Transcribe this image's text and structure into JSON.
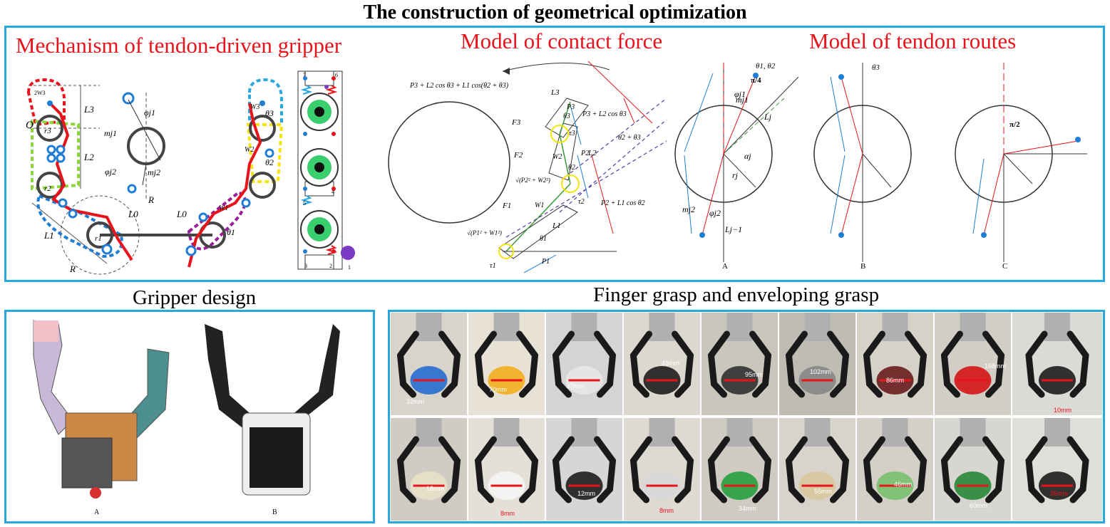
{
  "title": "The construction of geometrical optimization",
  "sections": {
    "mechanism": "Mechanism of tendon-driven gripper",
    "contact_force": "Model of contact force",
    "tendon_routes": "Model of tendon routes",
    "gripper_design": "Gripper design",
    "grasp": "Finger grasp and enveloping grasp"
  },
  "mechanism_labels": {
    "O": "O",
    "r3": "r3",
    "r2": "r2",
    "r1": "r1",
    "L3": "L3",
    "L2": "L2",
    "L1": "L1",
    "L0a": "L0",
    "L0b": "L0",
    "R1": "R",
    "R2": "R",
    "w3a": "2W3",
    "w3b": "W3",
    "w2": "W2",
    "w1": "W1",
    "theta3": "θ3",
    "theta2": "θ2",
    "theta1": "θ1",
    "phi_j1": "φj1",
    "phi_j2": "φj2",
    "m_j1": "mj1",
    "m_j2": "mj2",
    "n1": "1",
    "n2": "2",
    "n3": "3",
    "n4": "4",
    "n5": "5",
    "n6": "6",
    "n7": "7"
  },
  "force_labels": {
    "expr_top": "P3 + L2 cos θ3 + L1 cos(θ2 + θ3)",
    "expr_mid": "P3 + L2 cos θ3",
    "expr_low": "P2 + L1 cos θ2",
    "sqrt2": "√(P2² + W2²)",
    "sqrt1": "√(P1² + W1²)",
    "th23": "θ2 + θ3",
    "L3": "L3",
    "L2": "L2",
    "L1": "L1",
    "P3": "P3",
    "P2": "P2",
    "P1": "P1",
    "W2": "W2",
    "W1": "W1",
    "F3": "F3",
    "F2": "F2",
    "F1": "F1",
    "tau3": "τ3",
    "tau2": "τ2",
    "tau1": "τ1",
    "th3": "θ3",
    "th2": "θ2",
    "th1": "θ1"
  },
  "routes": [
    {
      "label": "A",
      "top": "θ1, θ2",
      "frac": "π/4"
    },
    {
      "label": "B",
      "top": "θ3"
    },
    {
      "label": "C",
      "frac": "π/2"
    }
  ],
  "route_symbols": {
    "mj1": "mj1",
    "mj2": "mj2",
    "phij1": "φj1",
    "phij2": "φj2",
    "alpha": "αj",
    "rj": "rj",
    "Lj": "Lj",
    "Lj1": "Lj−1"
  },
  "design_labels": {
    "a": "A",
    "b": "B"
  },
  "grasp_measurements": {
    "top": [
      "32mm",
      "70mm",
      "37mm",
      "48mm",
      "95mm",
      "102mm",
      "86mm",
      "168mm",
      "10mm"
    ],
    "bottom": [
      "18mm",
      "8mm",
      "12mm",
      "8mm",
      "34mm",
      "55mm",
      "46mm",
      "60mm",
      "35mm"
    ]
  },
  "colors": {
    "accent_border": "#29a8e0",
    "heading_red": "#e8141b",
    "tendon_red": "#e8141b",
    "tendon_blue": "#1f7ed4"
  }
}
